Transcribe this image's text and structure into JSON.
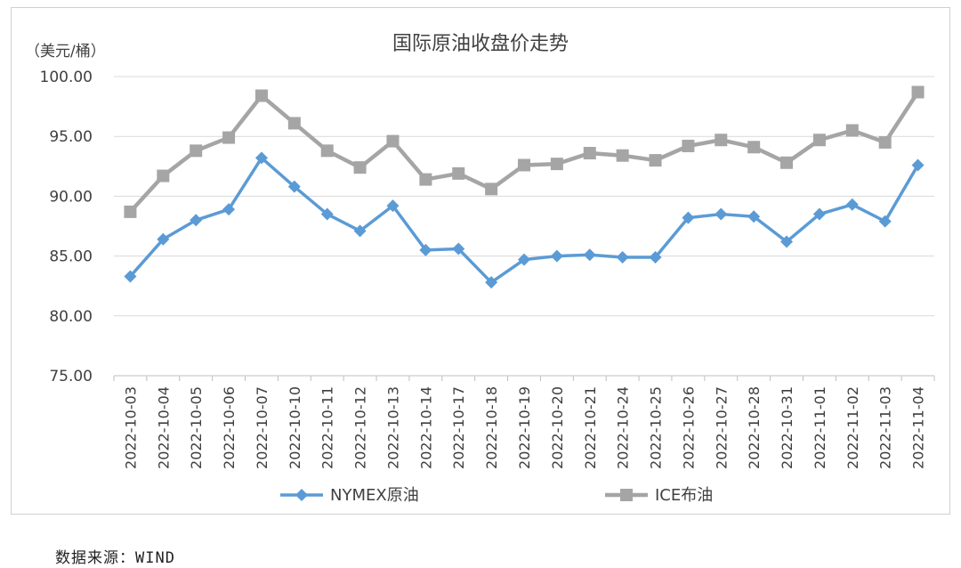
{
  "chart_data": {
    "type": "line",
    "title": "国际原油收盘价走势",
    "ylabel": "（美元/桶）",
    "ylim": [
      75,
      100
    ],
    "yticks": [
      "75.00",
      "80.00",
      "85.00",
      "90.00",
      "95.00",
      "100.00"
    ],
    "legend_position": "bottom",
    "categories": [
      "2022-10-03",
      "2022-10-04",
      "2022-10-05",
      "2022-10-06",
      "2022-10-07",
      "2022-10-10",
      "2022-10-11",
      "2022-10-12",
      "2022-10-13",
      "2022-10-14",
      "2022-10-17",
      "2022-10-18",
      "2022-10-19",
      "2022-10-20",
      "2022-10-21",
      "2022-10-24",
      "2022-10-25",
      "2022-10-26",
      "2022-10-27",
      "2022-10-28",
      "2022-10-31",
      "2022-11-01",
      "2022-11-02",
      "2022-11-03",
      "2022-11-04"
    ],
    "series": [
      {
        "name": "NYMEX原油",
        "color": "#5b9bd5",
        "marker": "diamond",
        "values": [
          83.3,
          86.4,
          88.0,
          88.9,
          93.2,
          90.8,
          88.5,
          87.1,
          89.2,
          85.5,
          85.6,
          82.8,
          84.7,
          85.0,
          85.1,
          84.9,
          84.9,
          88.2,
          88.5,
          88.3,
          86.2,
          88.5,
          89.3,
          87.9,
          92.6
        ]
      },
      {
        "name": "ICE布油",
        "color": "#a5a5a5",
        "marker": "square",
        "values": [
          88.7,
          91.7,
          93.8,
          94.9,
          98.4,
          96.1,
          93.8,
          92.4,
          94.6,
          91.4,
          91.9,
          90.6,
          92.6,
          92.7,
          93.6,
          93.4,
          93.0,
          94.2,
          94.7,
          94.1,
          92.8,
          94.7,
          95.5,
          94.5,
          98.7
        ]
      }
    ]
  },
  "footer": {
    "source": "数据来源：WIND"
  }
}
